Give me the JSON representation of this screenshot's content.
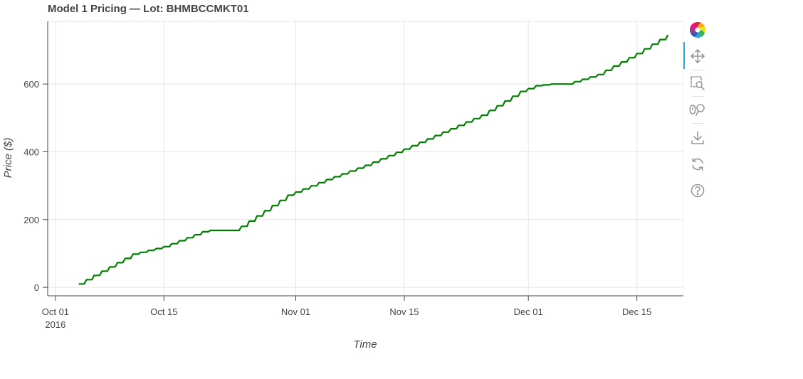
{
  "title": "Model 1 Pricing — Lot: BHMBCCMKT01",
  "toolbar": {
    "tools": [
      "bokeh-logo-icon",
      "pan-icon",
      "box-zoom-icon",
      "wheel-zoom-icon",
      "save-icon",
      "reset-icon",
      "help-icon"
    ],
    "active_tool": "pan-icon",
    "accent_color": "#26aae1"
  },
  "chart_data": {
    "type": "line",
    "title": "Model 1 Pricing — Lot: BHMBCCMKT01",
    "xlabel": "Time",
    "ylabel": "Price ($)",
    "line_color": "#008000",
    "grid": true,
    "xlim": [
      "2016-09-30",
      "2016-12-21"
    ],
    "ylim": [
      -25,
      785
    ],
    "x_ticks": [
      {
        "date": "2016-10-01",
        "label": "Oct 01",
        "sublabel": "2016"
      },
      {
        "date": "2016-10-15",
        "label": "Oct 15",
        "sublabel": ""
      },
      {
        "date": "2016-11-01",
        "label": "Nov 01",
        "sublabel": ""
      },
      {
        "date": "2016-11-15",
        "label": "Nov 15",
        "sublabel": ""
      },
      {
        "date": "2016-12-01",
        "label": "Dec 01",
        "sublabel": ""
      },
      {
        "date": "2016-12-15",
        "label": "Dec 15",
        "sublabel": ""
      }
    ],
    "y_ticks": [
      0,
      200,
      400,
      600
    ],
    "series": [
      {
        "points": [
          [
            "2016-10-04",
            10
          ],
          [
            "2016-10-11",
            98
          ],
          [
            "2016-10-15",
            120
          ],
          [
            "2016-10-20",
            164
          ],
          [
            "2016-10-21",
            168
          ],
          [
            "2016-10-24",
            168
          ],
          [
            "2016-10-25",
            180
          ],
          [
            "2016-10-31",
            272
          ],
          [
            "2016-11-05",
            318
          ],
          [
            "2016-11-10",
            360
          ],
          [
            "2016-11-15",
            408
          ],
          [
            "2016-11-20",
            458
          ],
          [
            "2016-11-25",
            508
          ],
          [
            "2016-11-30",
            578
          ],
          [
            "2016-12-02",
            595
          ],
          [
            "2016-12-04",
            600
          ],
          [
            "2016-12-06",
            600
          ],
          [
            "2016-12-10",
            628
          ],
          [
            "2016-12-15",
            690
          ],
          [
            "2016-12-19",
            745
          ]
        ]
      }
    ]
  }
}
